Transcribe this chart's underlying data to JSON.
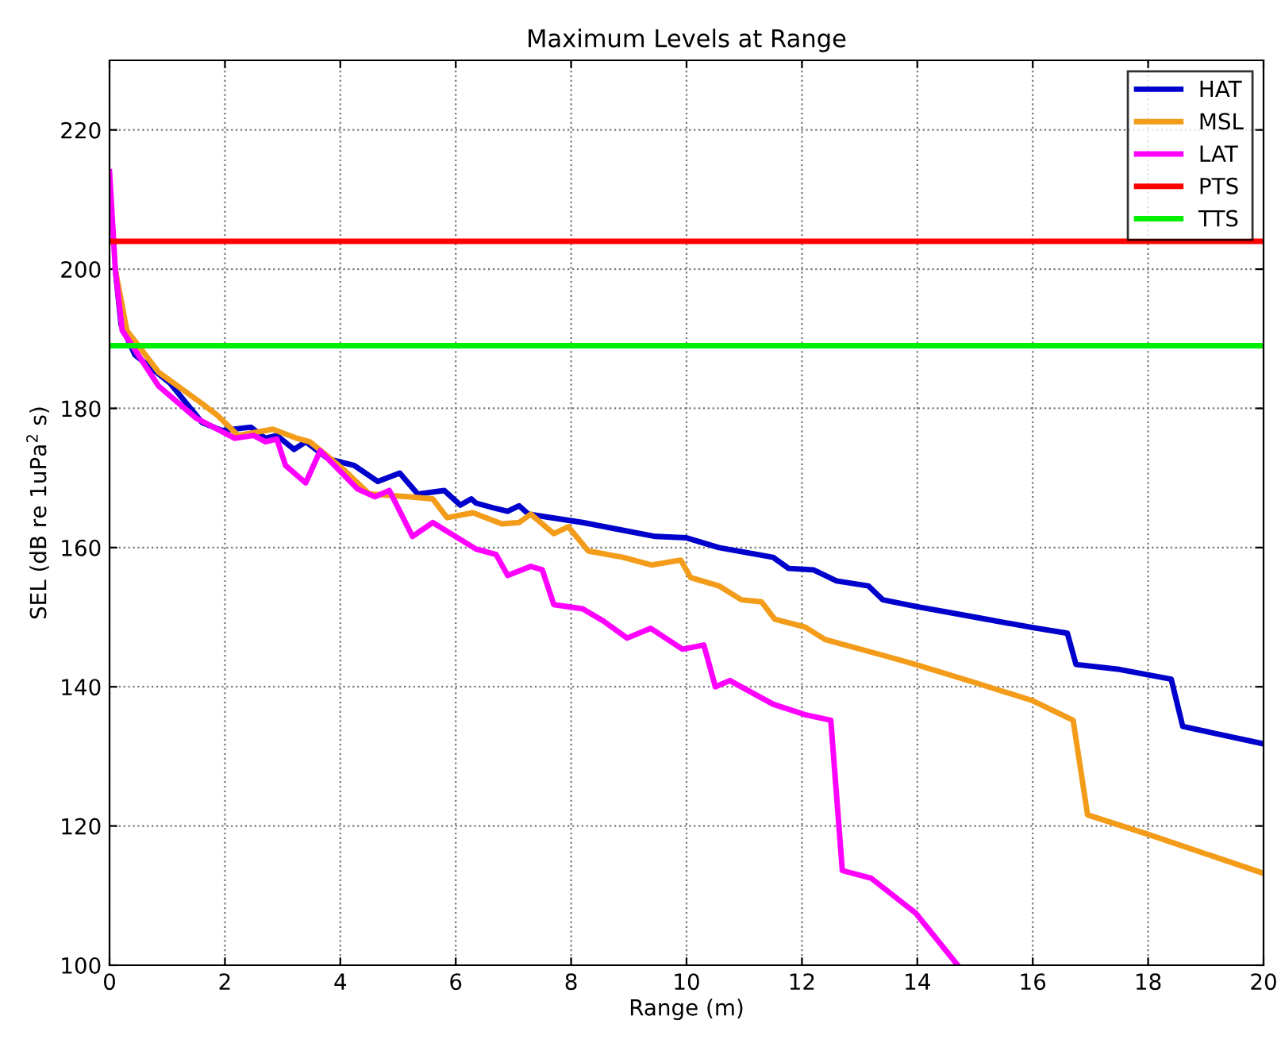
{
  "chart_data": {
    "type": "line",
    "title": "Maximum Levels at Range",
    "xlabel": "Range (m)",
    "ylabel": "SEL (dB re 1uPa$^{2}$ s)",
    "xlim": [
      0,
      20
    ],
    "ylim": [
      100,
      230
    ],
    "xticks": [
      0,
      2,
      4,
      6,
      8,
      10,
      12,
      14,
      16,
      18,
      20
    ],
    "yticks": [
      100,
      120,
      140,
      160,
      180,
      200,
      220
    ],
    "grid": true,
    "legend": "top right",
    "line_style": "solid",
    "marker": "none",
    "series": [
      {
        "name": "HAT",
        "color": "#0000cc",
        "x": [
          0.1,
          0.2,
          0.44,
          1.05,
          1.6,
          1.95,
          2.45,
          2.7,
          2.9,
          3.2,
          3.4,
          3.8,
          4.24,
          4.65,
          5.03,
          5.34,
          5.8,
          6.08,
          6.27,
          6.35,
          6.7,
          6.9,
          7.1,
          7.26,
          8.2,
          9.46,
          10,
          10.56,
          11.5,
          11.77,
          12.2,
          12.6,
          13.15,
          13.4,
          14,
          15,
          16,
          16.6,
          16.75,
          17.5,
          18.4,
          18.6,
          20
        ],
        "values": [
          200,
          192,
          187.7,
          183.6,
          178,
          176.8,
          177.3,
          175.7,
          176.1,
          174.1,
          175.2,
          172.7,
          171.8,
          169.5,
          170.7,
          167.7,
          168.2,
          166.1,
          167,
          166.4,
          165.6,
          165.2,
          166,
          164.8,
          163.6,
          161.6,
          161.4,
          160,
          158.6,
          157,
          156.8,
          155.2,
          154.5,
          152.5,
          151.5,
          150,
          148.5,
          147.7,
          143.2,
          142.5,
          141.1,
          134.3,
          131.8
        ]
      },
      {
        "name": "MSL",
        "color": "#f39c1a",
        "x": [
          0.1,
          0.3,
          0.85,
          1.6,
          1.87,
          2.23,
          2.83,
          3.25,
          3.47,
          3.8,
          4.07,
          4.5,
          5.17,
          5.6,
          5.85,
          6.3,
          6.8,
          7.1,
          7.3,
          7.7,
          7.95,
          8.3,
          8.9,
          9.4,
          9.9,
          10.07,
          10.56,
          10.95,
          11.3,
          11.53,
          12.05,
          12.4,
          13.5,
          13.97,
          15,
          16,
          16.7,
          16.95,
          18,
          19,
          20
        ],
        "values": [
          200,
          191.2,
          185.2,
          180.7,
          179,
          176.1,
          177,
          175.7,
          175.2,
          173,
          171.1,
          167.7,
          167.3,
          167,
          164.3,
          165,
          163.4,
          163.6,
          164.8,
          162,
          163,
          159.5,
          158.6,
          157.5,
          158.2,
          155.7,
          154.5,
          152.5,
          152.2,
          149.7,
          148.6,
          146.8,
          144.3,
          143.2,
          140.6,
          138,
          135.2,
          121.6,
          118.8,
          116,
          113.2
        ]
      },
      {
        "name": "LAT",
        "color": "#ff00ff",
        "x": [
          0,
          0.1,
          0.22,
          0.85,
          1.5,
          2.17,
          2.5,
          2.7,
          2.9,
          3.05,
          3.4,
          3.65,
          4.3,
          4.6,
          4.85,
          5.25,
          5.6,
          6.35,
          6.7,
          6.9,
          7.3,
          7.5,
          7.7,
          8.2,
          8.55,
          8.97,
          9.38,
          9.93,
          10.3,
          10.5,
          10.75,
          11.5,
          12.05,
          12.5,
          12.7,
          13.2,
          13.97,
          14.7
        ],
        "values": [
          214,
          200,
          191.2,
          183.2,
          178.6,
          175.7,
          176.1,
          175.2,
          175.6,
          171.8,
          169.3,
          173.9,
          168.4,
          167.3,
          168.2,
          161.6,
          163.6,
          159.8,
          159,
          156,
          157.3,
          156.8,
          151.8,
          151.2,
          149.5,
          147,
          148.4,
          145.4,
          146,
          140,
          140.9,
          137.5,
          136,
          135.2,
          113.6,
          112.5,
          107.5,
          100
        ]
      },
      {
        "name": "PTS",
        "color": "#ff0000",
        "x": [
          0,
          20
        ],
        "values": [
          204,
          204
        ]
      },
      {
        "name": "TTS",
        "color": "#00ee00",
        "x": [
          0,
          20
        ],
        "values": [
          189,
          189
        ]
      }
    ]
  }
}
